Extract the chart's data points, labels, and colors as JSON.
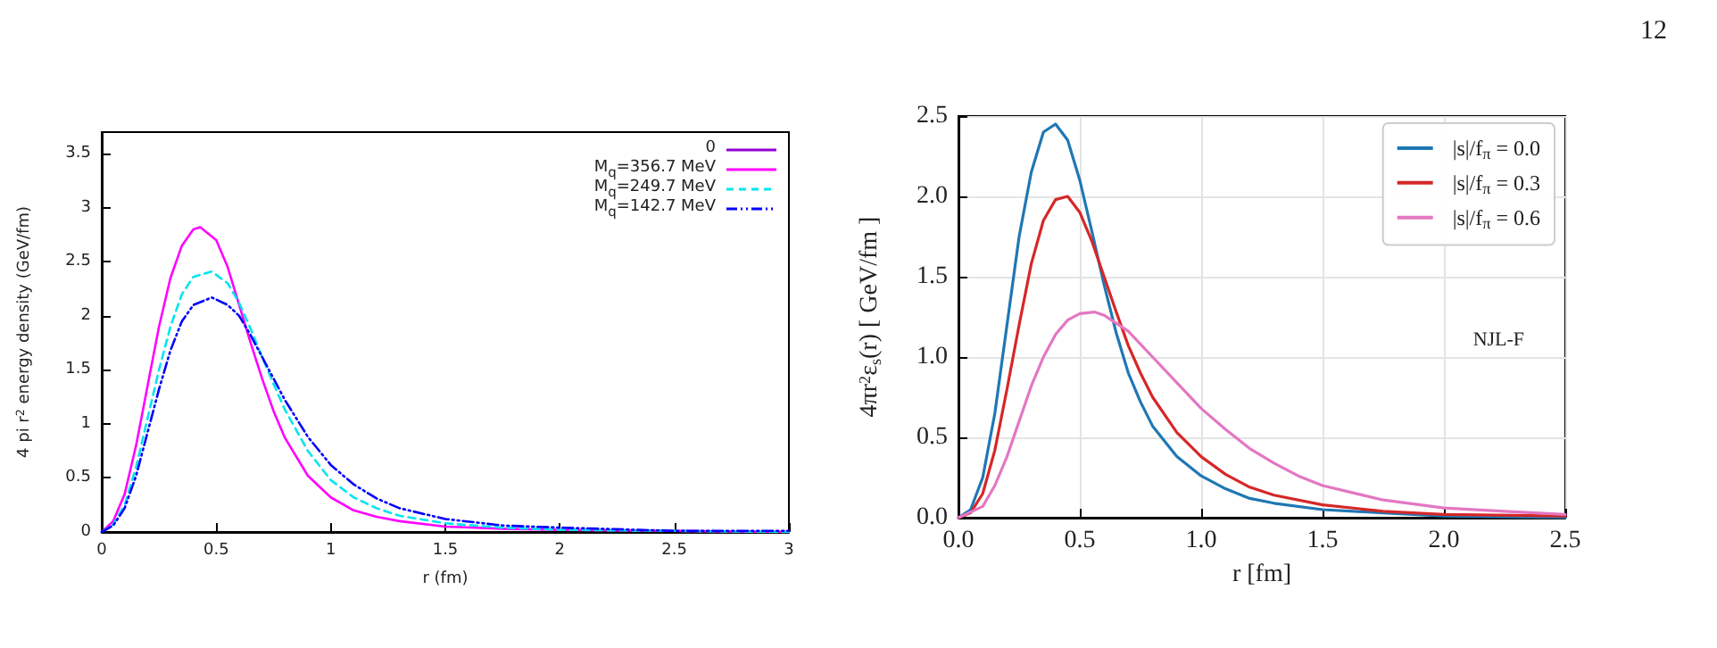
{
  "chart_data": [
    {
      "type": "line",
      "xlabel": "r (fm)",
      "ylabel": "4 pi r$^{2}$ energy density (GeV/fm)",
      "xlim": [
        0,
        3
      ],
      "xticks": [
        0,
        0.5,
        1,
        1.5,
        2,
        2.5,
        3
      ],
      "ylim": [
        0,
        3.7
      ],
      "yticks": [
        0,
        0.5,
        1,
        1.5,
        2,
        2.5,
        3,
        3.5
      ],
      "grid": false,
      "legend": "top right",
      "marker": "none",
      "x": [
        0,
        0.05,
        0.1,
        0.15,
        0.2,
        0.25,
        0.3,
        0.35,
        0.4,
        0.43,
        0.5,
        0.55,
        0.6,
        0.65,
        0.7,
        0.75,
        0.8,
        0.9,
        1.0,
        1.1,
        1.2,
        1.3,
        1.5,
        1.75,
        2,
        2.5,
        3
      ],
      "series": [
        {
          "name": "0",
          "color": "#9400d3",
          "line_style": "solid",
          "values": [
            null,
            null,
            null,
            null,
            null,
            null,
            null,
            null,
            null,
            null,
            null,
            null,
            null,
            null,
            null,
            null,
            null,
            null,
            null,
            null,
            null,
            null,
            null,
            null,
            null,
            null,
            null
          ]
        },
        {
          "name": "M$_{q}$=356.7 MeV",
          "color": "#ff00ff",
          "line_style": "solid",
          "values": [
            0,
            0.1,
            0.35,
            0.8,
            1.35,
            1.9,
            2.35,
            2.65,
            2.8,
            2.82,
            2.7,
            2.45,
            2.1,
            1.75,
            1.42,
            1.12,
            0.87,
            0.52,
            0.32,
            0.2,
            0.14,
            0.1,
            0.05,
            0.03,
            0.02,
            0.01,
            0
          ]
        },
        {
          "name": "M$_{q}$=249.7 MeV",
          "color": "#00e5ee",
          "line_style": "dashed",
          "x": [
            0,
            0.05,
            0.1,
            0.15,
            0.2,
            0.25,
            0.3,
            0.35,
            0.4,
            0.48,
            0.55,
            0.6,
            0.65,
            0.7,
            0.75,
            0.8,
            0.9,
            1.0,
            1.1,
            1.2,
            1.3,
            1.5,
            1.75,
            2,
            2.5,
            3
          ],
          "values": [
            0,
            0.07,
            0.25,
            0.6,
            1.05,
            1.5,
            1.9,
            2.2,
            2.36,
            2.41,
            2.3,
            2.12,
            1.88,
            1.62,
            1.37,
            1.13,
            0.75,
            0.48,
            0.32,
            0.22,
            0.15,
            0.08,
            0.04,
            0.02,
            0.01,
            0
          ]
        },
        {
          "name": "M$_{q}$=142.7 MeV",
          "color": "#0000ff",
          "line_style": "dotted",
          "x": [
            0,
            0.05,
            0.1,
            0.15,
            0.2,
            0.25,
            0.3,
            0.35,
            0.4,
            0.48,
            0.55,
            0.6,
            0.65,
            0.7,
            0.75,
            0.8,
            0.9,
            1.0,
            1.1,
            1.2,
            1.3,
            1.5,
            1.75,
            2,
            2.5,
            3
          ],
          "values": [
            0,
            0.06,
            0.22,
            0.52,
            0.92,
            1.32,
            1.68,
            1.95,
            2.1,
            2.17,
            2.1,
            2.0,
            1.82,
            1.62,
            1.42,
            1.22,
            0.88,
            0.62,
            0.44,
            0.31,
            0.22,
            0.12,
            0.06,
            0.04,
            0.01,
            0.01
          ]
        }
      ]
    },
    {
      "type": "line",
      "xlabel": "r [fm]",
      "ylabel": "4πr$^{2}$ε$_{s}$(r) [ GeV/fm ]",
      "xlim": [
        0,
        2.5
      ],
      "xticks": [
        {
          "value": 0,
          "label": "0.0"
        },
        0.5,
        {
          "value": 1,
          "label": "1.0"
        },
        1.5,
        {
          "value": 2,
          "label": "2.0"
        },
        2.5
      ],
      "ylim": [
        0,
        2.5
      ],
      "yticks": [
        {
          "value": 0,
          "label": "0.0"
        },
        0.5,
        {
          "value": 1,
          "label": "1.0"
        },
        1.5,
        {
          "value": 2,
          "label": "2.0"
        },
        2.5
      ],
      "grid": true,
      "legend": "top right",
      "marker": "none",
      "line_style": "solid",
      "annotations": [
        "12",
        "NJL-F"
      ],
      "series": [
        {
          "name": "|s|/f$_{π}$ = 0.0",
          "color": "#1f77b4",
          "x": [
            0,
            0.05,
            0.1,
            0.15,
            0.2,
            0.25,
            0.3,
            0.35,
            0.4,
            0.45,
            0.5,
            0.55,
            0.6,
            0.65,
            0.7,
            0.75,
            0.8,
            0.9,
            1.0,
            1.1,
            1.2,
            1.3,
            1.5,
            1.75,
            2,
            2.5
          ],
          "values": [
            0,
            0.05,
            0.25,
            0.65,
            1.2,
            1.75,
            2.15,
            2.4,
            2.45,
            2.35,
            2.1,
            1.78,
            1.45,
            1.15,
            0.9,
            0.72,
            0.57,
            0.38,
            0.26,
            0.18,
            0.12,
            0.09,
            0.05,
            0.03,
            0.01,
            0
          ]
        },
        {
          "name": "|s|/f$_{π}$ = 0.3",
          "color": "#d62728",
          "x": [
            0,
            0.05,
            0.1,
            0.15,
            0.2,
            0.25,
            0.3,
            0.35,
            0.4,
            0.45,
            0.5,
            0.55,
            0.6,
            0.65,
            0.7,
            0.75,
            0.8,
            0.9,
            1.0,
            1.1,
            1.2,
            1.3,
            1.5,
            1.75,
            2,
            2.5
          ],
          "values": [
            0,
            0.03,
            0.15,
            0.42,
            0.8,
            1.2,
            1.58,
            1.85,
            1.98,
            2.0,
            1.9,
            1.72,
            1.5,
            1.28,
            1.07,
            0.9,
            0.75,
            0.53,
            0.38,
            0.27,
            0.19,
            0.14,
            0.08,
            0.04,
            0.02,
            0.01
          ]
        },
        {
          "name": "|s|/f$_{π}$ = 0.6",
          "color": "#e377c2",
          "x": [
            0,
            0.1,
            0.15,
            0.2,
            0.25,
            0.3,
            0.35,
            0.4,
            0.45,
            0.5,
            0.56,
            0.6,
            0.7,
            0.8,
            0.9,
            1.0,
            1.1,
            1.2,
            1.3,
            1.4,
            1.5,
            1.75,
            2,
            2.25,
            2.5
          ],
          "values": [
            0,
            0.07,
            0.2,
            0.38,
            0.6,
            0.82,
            1.0,
            1.14,
            1.23,
            1.27,
            1.28,
            1.26,
            1.16,
            1.0,
            0.84,
            0.68,
            0.55,
            0.43,
            0.34,
            0.26,
            0.2,
            0.11,
            0.06,
            0.04,
            0.02
          ]
        }
      ]
    }
  ]
}
